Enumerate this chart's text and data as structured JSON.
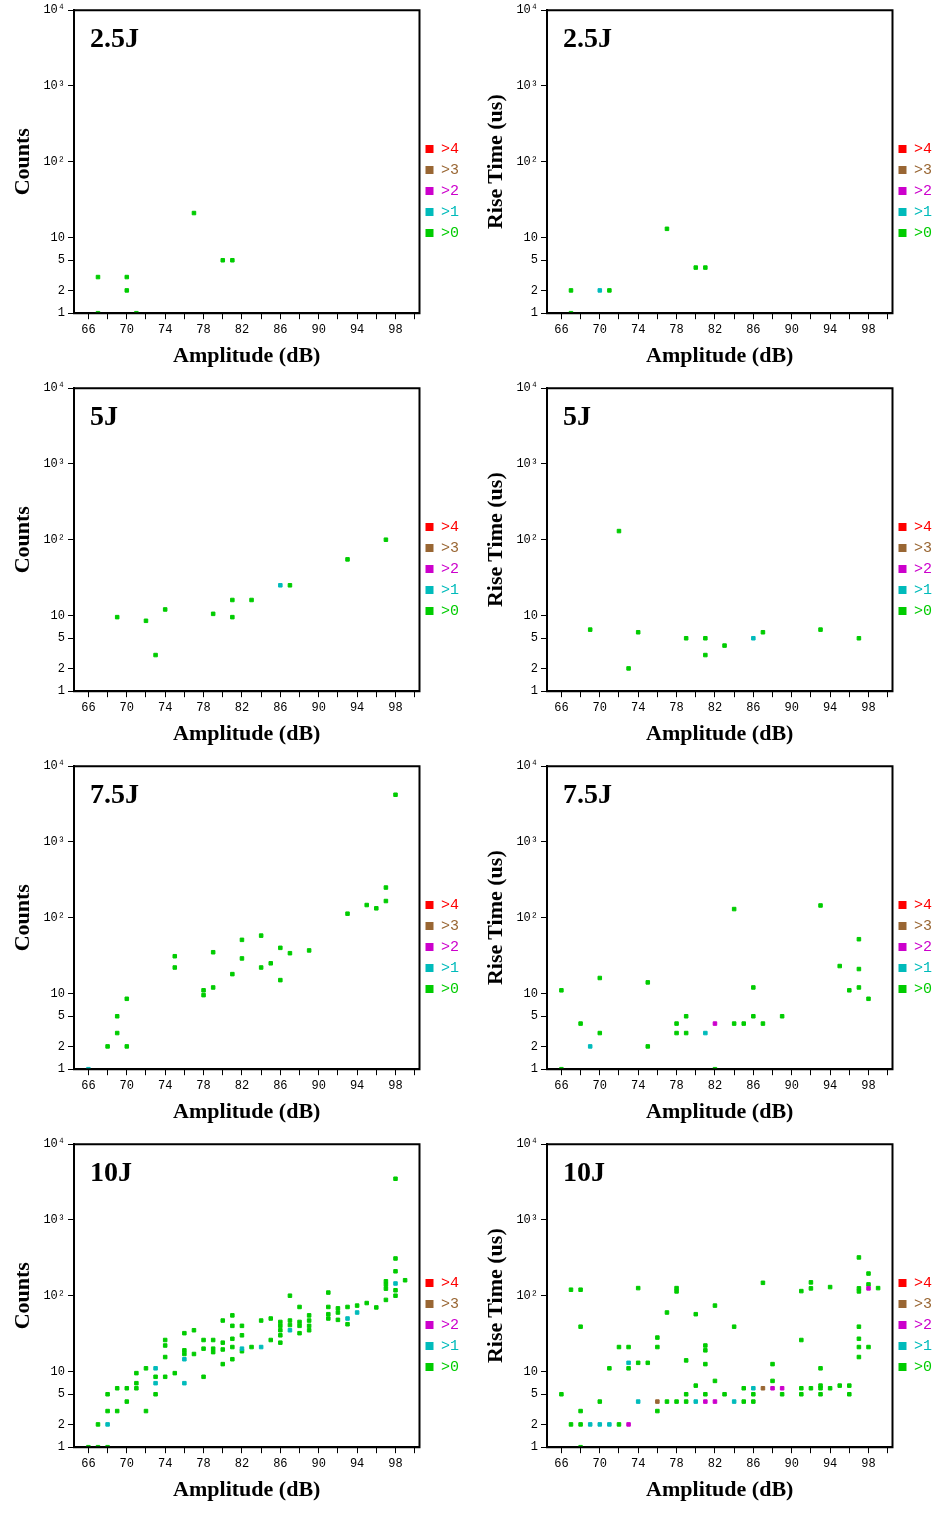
{
  "chart_data": [
    {
      "type": "scatter",
      "title": "2.5J",
      "xlabel": "Amplitude (dB)",
      "ylabel": "Counts",
      "log": "y",
      "marker": "square",
      "legend": "right",
      "xlim": [
        64.5,
        100.5
      ],
      "ylim": [
        1,
        10000
      ],
      "xticks": [
        66,
        {
          "value": 68,
          "label": null
        },
        70,
        {
          "value": 72,
          "label": null
        },
        74,
        {
          "value": 76,
          "label": null
        },
        78,
        {
          "value": 80,
          "label": null
        },
        82,
        {
          "value": 84,
          "label": null
        },
        86,
        {
          "value": 88,
          "label": null
        },
        90,
        {
          "value": 92,
          "label": null
        },
        94,
        {
          "value": 96,
          "label": null
        },
        98,
        {
          "value": 100,
          "label": null
        }
      ],
      "yticks": [
        1,
        2,
        5,
        10,
        {
          "value": 100,
          "label": "10²"
        },
        {
          "value": 1000,
          "label": "10³"
        },
        {
          "value": 10000,
          "label": "10⁴"
        }
      ],
      "series": [
        {
          "name": ">4",
          "color": "#ff0000"
        },
        {
          "name": ">3",
          "color": "#996633"
        },
        {
          "name": ">2",
          "color": "#cc00cc"
        },
        {
          "name": ">1",
          "color": "#00bbbb"
        },
        {
          "name": ">0",
          "color": "#00cc00",
          "x": [
            67,
            67,
            70,
            70,
            71,
            77,
            80,
            81
          ],
          "values": [
            3,
            1,
            3,
            2,
            1,
            21,
            5,
            5
          ]
        }
      ]
    },
    {
      "type": "scatter",
      "title": "2.5J",
      "xlabel": "Amplitude (dB)",
      "ylabel": "Rise Time (us)",
      "log": "y",
      "marker": "square",
      "legend": "right",
      "xlim": [
        64.5,
        100.5
      ],
      "ylim": [
        1,
        10000
      ],
      "xticks": [
        66,
        {
          "value": 68,
          "label": null
        },
        70,
        {
          "value": 72,
          "label": null
        },
        74,
        {
          "value": 76,
          "label": null
        },
        78,
        {
          "value": 80,
          "label": null
        },
        82,
        {
          "value": 84,
          "label": null
        },
        86,
        {
          "value": 88,
          "label": null
        },
        90,
        {
          "value": 92,
          "label": null
        },
        94,
        {
          "value": 96,
          "label": null
        },
        98,
        {
          "value": 100,
          "label": null
        }
      ],
      "yticks": [
        1,
        2,
        5,
        10,
        {
          "value": 100,
          "label": "10²"
        },
        {
          "value": 1000,
          "label": "10³"
        },
        {
          "value": 10000,
          "label": "10⁴"
        }
      ],
      "series": [
        {
          "name": ">4",
          "color": "#ff0000"
        },
        {
          "name": ">3",
          "color": "#996633"
        },
        {
          "name": ">2",
          "color": "#cc00cc"
        },
        {
          "name": ">1",
          "color": "#00bbbb",
          "x": [
            70
          ],
          "values": [
            2
          ]
        },
        {
          "name": ">0",
          "color": "#00cc00",
          "x": [
            67,
            67,
            71,
            77,
            80,
            81
          ],
          "values": [
            2,
            1,
            2,
            13,
            4,
            4
          ]
        }
      ]
    },
    {
      "type": "scatter",
      "title": "5J",
      "xlabel": "Amplitude (dB)",
      "ylabel": "Counts",
      "log": "y",
      "marker": "square",
      "legend": "right",
      "xlim": [
        64.5,
        100.5
      ],
      "ylim": [
        1,
        10000
      ],
      "xticks": [
        66,
        {
          "value": 68,
          "label": null
        },
        70,
        {
          "value": 72,
          "label": null
        },
        74,
        {
          "value": 76,
          "label": null
        },
        78,
        {
          "value": 80,
          "label": null
        },
        82,
        {
          "value": 84,
          "label": null
        },
        86,
        {
          "value": 88,
          "label": null
        },
        90,
        {
          "value": 92,
          "label": null
        },
        94,
        {
          "value": 96,
          "label": null
        },
        98,
        {
          "value": 100,
          "label": null
        }
      ],
      "yticks": [
        1,
        2,
        5,
        10,
        {
          "value": 100,
          "label": "10²"
        },
        {
          "value": 1000,
          "label": "10³"
        },
        {
          "value": 10000,
          "label": "10⁴"
        }
      ],
      "series": [
        {
          "name": ">4",
          "color": "#ff0000"
        },
        {
          "name": ">3",
          "color": "#996633"
        },
        {
          "name": ">2",
          "color": "#cc00cc"
        },
        {
          "name": ">1",
          "color": "#00bbbb",
          "x": [
            86
          ],
          "values": [
            25
          ]
        },
        {
          "name": ">0",
          "color": "#00cc00",
          "x": [
            69,
            72,
            73,
            74,
            79,
            81,
            81,
            83,
            87,
            93,
            97
          ],
          "values": [
            9.5,
            8.5,
            3,
            12,
            10.5,
            16,
            9.5,
            16,
            25,
            55,
            100
          ]
        }
      ]
    },
    {
      "type": "scatter",
      "title": "5J",
      "xlabel": "Amplitude (dB)",
      "ylabel": "Rise Time (us)",
      "log": "y",
      "marker": "square",
      "legend": "right",
      "xlim": [
        64.5,
        100.5
      ],
      "ylim": [
        1,
        10000
      ],
      "xticks": [
        66,
        {
          "value": 68,
          "label": null
        },
        70,
        {
          "value": 72,
          "label": null
        },
        74,
        {
          "value": 76,
          "label": null
        },
        78,
        {
          "value": 80,
          "label": null
        },
        82,
        {
          "value": 84,
          "label": null
        },
        86,
        {
          "value": 88,
          "label": null
        },
        90,
        {
          "value": 92,
          "label": null
        },
        94,
        {
          "value": 96,
          "label": null
        },
        98,
        {
          "value": 100,
          "label": null
        }
      ],
      "yticks": [
        1,
        2,
        5,
        10,
        {
          "value": 100,
          "label": "10²"
        },
        {
          "value": 1000,
          "label": "10³"
        },
        {
          "value": 10000,
          "label": "10⁴"
        }
      ],
      "series": [
        {
          "name": ">4",
          "color": "#ff0000"
        },
        {
          "name": ">3",
          "color": "#996633"
        },
        {
          "name": ">2",
          "color": "#cc00cc"
        },
        {
          "name": ">1",
          "color": "#00bbbb",
          "x": [
            86
          ],
          "values": [
            5
          ]
        },
        {
          "name": ">0",
          "color": "#00cc00",
          "x": [
            69,
            72,
            73,
            74,
            79,
            81,
            81,
            83,
            87,
            93,
            97
          ],
          "values": [
            6.5,
            130,
            2,
            6,
            5,
            5,
            3,
            4,
            6,
            6.5,
            5
          ]
        }
      ]
    },
    {
      "type": "scatter",
      "title": "7.5J",
      "xlabel": "Amplitude (dB)",
      "ylabel": "Counts",
      "log": "y",
      "marker": "square",
      "legend": "right",
      "xlim": [
        64.5,
        100.5
      ],
      "ylim": [
        1,
        10000
      ],
      "xticks": [
        66,
        {
          "value": 68,
          "label": null
        },
        70,
        {
          "value": 72,
          "label": null
        },
        74,
        {
          "value": 76,
          "label": null
        },
        78,
        {
          "value": 80,
          "label": null
        },
        82,
        {
          "value": 84,
          "label": null
        },
        86,
        {
          "value": 88,
          "label": null
        },
        90,
        {
          "value": 92,
          "label": null
        },
        94,
        {
          "value": 96,
          "label": null
        },
        98,
        {
          "value": 100,
          "label": null
        }
      ],
      "yticks": [
        1,
        2,
        5,
        10,
        {
          "value": 100,
          "label": "10²"
        },
        {
          "value": 1000,
          "label": "10³"
        },
        {
          "value": 10000,
          "label": "10⁴"
        }
      ],
      "series": [
        {
          "name": ">4",
          "color": "#ff0000"
        },
        {
          "name": ">3",
          "color": "#996633"
        },
        {
          "name": ">2",
          "color": "#cc00cc"
        },
        {
          "name": ">1",
          "color": "#00bbbb",
          "x": [
            66
          ],
          "values": [
            1
          ]
        },
        {
          "name": ">0",
          "color": "#00cc00",
          "x": [
            68,
            69,
            69,
            70,
            70,
            75,
            75,
            78,
            78,
            79,
            79,
            81,
            82,
            82,
            84,
            84,
            85,
            86,
            86,
            87,
            89,
            93,
            95,
            96,
            97,
            97,
            98
          ],
          "values": [
            2,
            3,
            5,
            2,
            8.5,
            31,
            22,
            11,
            9.5,
            12,
            35,
            18,
            51,
            29,
            58,
            22,
            25,
            40,
            15,
            34,
            37,
            113,
            147,
            133,
            250,
            166,
            4200
          ]
        }
      ]
    },
    {
      "type": "scatter",
      "title": "7.5J",
      "xlabel": "Amplitude (dB)",
      "ylabel": "Rise Time (us)",
      "log": "y",
      "marker": "square",
      "legend": "right",
      "xlim": [
        64.5,
        100.5
      ],
      "ylim": [
        1,
        10000
      ],
      "xticks": [
        66,
        {
          "value": 68,
          "label": null
        },
        70,
        {
          "value": 72,
          "label": null
        },
        74,
        {
          "value": 76,
          "label": null
        },
        78,
        {
          "value": 80,
          "label": null
        },
        82,
        {
          "value": 84,
          "label": null
        },
        86,
        {
          "value": 88,
          "label": null
        },
        90,
        {
          "value": 92,
          "label": null
        },
        94,
        {
          "value": 96,
          "label": null
        },
        98,
        {
          "value": 100,
          "label": null
        }
      ],
      "yticks": [
        1,
        2,
        5,
        10,
        {
          "value": 100,
          "label": "10²"
        },
        {
          "value": 1000,
          "label": "10³"
        },
        {
          "value": 10000,
          "label": "10⁴"
        }
      ],
      "series": [
        {
          "name": ">4",
          "color": "#ff0000"
        },
        {
          "name": ">3",
          "color": "#996633"
        },
        {
          "name": ">2",
          "color": "#cc00cc",
          "x": [
            82
          ],
          "values": [
            4
          ]
        },
        {
          "name": ">1",
          "color": "#00bbbb",
          "x": [
            69,
            81
          ],
          "values": [
            2,
            3
          ]
        },
        {
          "name": ">0",
          "color": "#00cc00",
          "x": [
            66,
            66,
            68,
            70,
            70,
            75,
            75,
            78,
            78,
            79,
            79,
            82,
            84,
            84,
            85,
            86,
            86,
            87,
            89,
            93,
            95,
            96,
            97,
            97,
            97,
            98
          ],
          "values": [
            11,
            1,
            4,
            16,
            3,
            14,
            2,
            4,
            3,
            5,
            3,
            1,
            130,
            4,
            4,
            12,
            5,
            4,
            5,
            145,
            23,
            11,
            52,
            21,
            12,
            8.5
          ]
        }
      ]
    },
    {
      "type": "scatter",
      "title": "10J",
      "xlabel": "Amplitude (dB)",
      "ylabel": "Counts",
      "log": "y",
      "marker": "square",
      "legend": "right",
      "xlim": [
        64.5,
        100.5
      ],
      "ylim": [
        1,
        10000
      ],
      "xticks": [
        66,
        {
          "value": 68,
          "label": null
        },
        70,
        {
          "value": 72,
          "label": null
        },
        74,
        {
          "value": 76,
          "label": null
        },
        78,
        {
          "value": 80,
          "label": null
        },
        82,
        {
          "value": 84,
          "label": null
        },
        86,
        {
          "value": 88,
          "label": null
        },
        90,
        {
          "value": 92,
          "label": null
        },
        94,
        {
          "value": 96,
          "label": null
        },
        98,
        {
          "value": 100,
          "label": null
        }
      ],
      "yticks": [
        1,
        2,
        5,
        10,
        {
          "value": 100,
          "label": "10²"
        },
        {
          "value": 1000,
          "label": "10³"
        },
        {
          "value": 10000,
          "label": "10⁴"
        }
      ],
      "series": [
        {
          "name": ">4",
          "color": "#ff0000"
        },
        {
          "name": ">3",
          "color": "#996633"
        },
        {
          "name": ">2",
          "color": "#cc00cc"
        },
        {
          "name": ">1",
          "color": "#00bbbb",
          "x": [
            68,
            73,
            73,
            76,
            76,
            82,
            84,
            87,
            93,
            94,
            98
          ],
          "values": [
            2,
            11,
            7,
            14.5,
            7,
            20,
            21,
            35,
            50,
            60,
            145
          ]
        },
        {
          "name": ">0",
          "color": "#00cc00",
          "x": [
            66,
            67,
            67,
            68,
            68,
            68,
            69,
            69,
            70,
            70,
            71,
            71,
            71,
            72,
            72,
            73,
            73,
            74,
            74,
            74,
            74,
            75,
            76,
            76,
            76,
            77,
            77,
            78,
            78,
            78,
            79,
            79,
            79,
            80,
            80,
            80,
            80,
            81,
            81,
            81,
            81,
            81,
            82,
            82,
            82,
            83,
            84,
            85,
            85,
            86,
            86,
            86,
            86,
            86,
            87,
            87,
            87,
            88,
            88,
            88,
            88,
            89,
            89,
            89,
            89,
            91,
            91,
            91,
            91,
            92,
            92,
            92,
            93,
            93,
            94,
            95,
            96,
            97,
            97,
            97,
            97,
            98,
            98,
            98,
            98,
            98,
            99
          ],
          "values": [
            1,
            1,
            2,
            1,
            3,
            5,
            3,
            6,
            4,
            6,
            6,
            7,
            9.5,
            3,
            11,
            8.5,
            5,
            26,
            22,
            15.5,
            8.5,
            9.5,
            32,
            19,
            17,
            35,
            17,
            26,
            20,
            8.5,
            26,
            20,
            18,
            47,
            24,
            19.5,
            12.5,
            55,
            40,
            27,
            21,
            14.5,
            40,
            30,
            18.5,
            21,
            47,
            50,
            26,
            45,
            40,
            35,
            30,
            24,
            100,
            47,
            41,
            71,
            45,
            40,
            32,
            55,
            47,
            40,
            35,
            110,
            71,
            57,
            50,
            68,
            60,
            48,
            71,
            42,
            74,
            80,
            70,
            88,
            124,
            140,
            155,
            3500,
            310,
            210,
            118,
            100,
            160
          ]
        }
      ]
    },
    {
      "type": "scatter",
      "title": "10J",
      "xlabel": "Amplitude (dB)",
      "ylabel": "Rise Time (us)",
      "log": "y",
      "marker": "square",
      "legend": "right",
      "xlim": [
        64.5,
        100.5
      ],
      "ylim": [
        1,
        10000
      ],
      "xticks": [
        66,
        {
          "value": 68,
          "label": null
        },
        70,
        {
          "value": 72,
          "label": null
        },
        74,
        {
          "value": 76,
          "label": null
        },
        78,
        {
          "value": 80,
          "label": null
        },
        82,
        {
          "value": 84,
          "label": null
        },
        86,
        {
          "value": 88,
          "label": null
        },
        90,
        {
          "value": 92,
          "label": null
        },
        94,
        {
          "value": 96,
          "label": null
        },
        98,
        {
          "value": 100,
          "label": null
        }
      ],
      "yticks": [
        1,
        2,
        5,
        10,
        {
          "value": 100,
          "label": "10²"
        },
        {
          "value": 1000,
          "label": "10³"
        },
        {
          "value": 10000,
          "label": "10⁴"
        }
      ],
      "series": [
        {
          "name": ">4",
          "color": "#ff0000"
        },
        {
          "name": ">3",
          "color": "#996633",
          "x": [
            76,
            87
          ],
          "values": [
            4,
            6
          ]
        },
        {
          "name": ">2",
          "color": "#cc00cc",
          "x": [
            73,
            81,
            82,
            88,
            89,
            98
          ],
          "values": [
            2,
            4,
            4,
            6,
            6,
            125
          ]
        },
        {
          "name": ">1",
          "color": "#00bbbb",
          "x": [
            69,
            70,
            71,
            73,
            74,
            80,
            84,
            86
          ],
          "values": [
            2,
            2,
            2,
            13,
            4,
            4,
            4,
            6
          ]
        },
        {
          "name": ">0",
          "color": "#00cc00",
          "x": [
            66,
            67,
            67,
            68,
            68,
            68,
            68,
            68,
            70,
            71,
            72,
            72,
            73,
            73,
            74,
            74,
            75,
            76,
            76,
            76,
            77,
            77,
            78,
            78,
            78,
            79,
            79,
            79,
            80,
            80,
            81,
            81,
            81,
            81,
            82,
            82,
            83,
            84,
            85,
            85,
            86,
            86,
            87,
            88,
            88,
            89,
            91,
            91,
            91,
            91,
            92,
            92,
            92,
            93,
            93,
            93,
            93,
            94,
            94,
            95,
            96,
            96,
            97,
            97,
            97,
            97,
            97,
            97,
            97,
            98,
            98,
            98,
            99
          ],
          "values": [
            5,
            120,
            2,
            120,
            39,
            3,
            2,
            1,
            4,
            11,
            21,
            2,
            21,
            11,
            126,
            13,
            13,
            28,
            21,
            3,
            60,
            4,
            126,
            114,
            4,
            14,
            5,
            4,
            57,
            6.5,
            22,
            19,
            12.5,
            5,
            74,
            7.5,
            5,
            39,
            6,
            4,
            5,
            4,
            148,
            12.5,
            7.5,
            5,
            115,
            26,
            6,
            5,
            150,
            125,
            6,
            11,
            6.5,
            6,
            5,
            130,
            6,
            6.5,
            6.5,
            5,
            320,
            125,
            114,
            39,
            27,
            21,
            15.5,
            196,
            141,
            21,
            126
          ]
        }
      ]
    }
  ]
}
